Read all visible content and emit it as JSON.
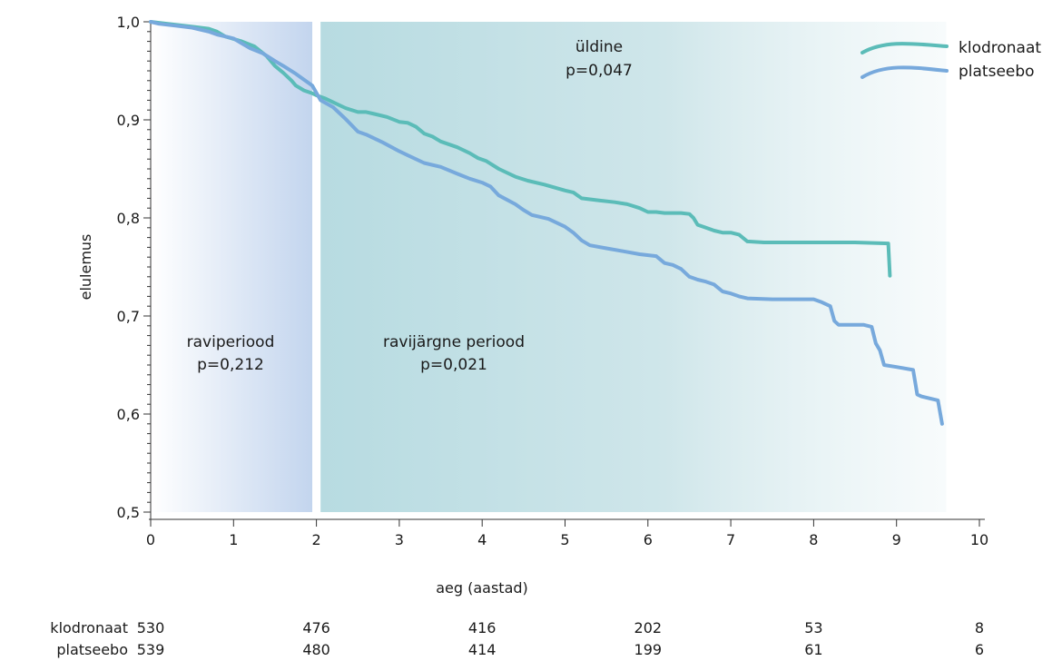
{
  "chart_data": {
    "type": "line",
    "xlabel": "aeg (aastad)",
    "ylabel": "elulemus",
    "xlim": [
      0,
      10
    ],
    "ylim": [
      0.5,
      1.0
    ],
    "x_ticks": [
      "0",
      "1",
      "2",
      "3",
      "4",
      "5",
      "6",
      "7",
      "8",
      "9",
      "10"
    ],
    "y_ticks": [
      {
        "value": 1.0,
        "label": "1,0"
      },
      {
        "value": 0.9,
        "label": "0,9"
      },
      {
        "value": 0.8,
        "label": "0,8"
      },
      {
        "value": 0.7,
        "label": "0,7"
      },
      {
        "value": 0.6,
        "label": "0,6"
      },
      {
        "value": 0.5,
        "label": "0,5"
      }
    ],
    "grid": false,
    "legend_position": "top-right",
    "colors": {
      "klodronaat": "#5bbcb8",
      "platseebo": "#77a9dc",
      "treatment_band": "#c3d5ee",
      "post_band": "#b7dbe1"
    },
    "regions": [
      {
        "x_start": 0,
        "x_end": 1.95,
        "label": "raviperiood",
        "p_label": "p=0,212"
      },
      {
        "x_start": 2.05,
        "x_end": 9.6,
        "label": "ravijärgne periood",
        "p_label": "p=0,021"
      }
    ],
    "overall_annotation": {
      "label": "üldine",
      "p_label": "p=0,047"
    },
    "series": [
      {
        "name": "klodronaat",
        "x": [
          0,
          0.1,
          0.3,
          0.5,
          0.7,
          0.8,
          0.9,
          1.1,
          1.25,
          1.4,
          1.5,
          1.6,
          1.7,
          1.75,
          1.85,
          1.95,
          2.0,
          2.1,
          2.2,
          2.35,
          2.5,
          2.6,
          2.7,
          2.85,
          3.0,
          3.1,
          3.2,
          3.3,
          3.4,
          3.5,
          3.7,
          3.85,
          3.95,
          4.05,
          4.2,
          4.4,
          4.55,
          4.75,
          5.0,
          5.1,
          5.2,
          5.4,
          5.6,
          5.75,
          5.9,
          6.0,
          6.1,
          6.2,
          6.4,
          6.5,
          6.55,
          6.6,
          6.7,
          6.8,
          6.9,
          7.0,
          7.1,
          7.2,
          7.4,
          8.0,
          8.5,
          8.9,
          8.92
        ],
        "values": [
          1.0,
          0.999,
          0.997,
          0.995,
          0.993,
          0.99,
          0.985,
          0.98,
          0.975,
          0.965,
          0.955,
          0.948,
          0.94,
          0.935,
          0.93,
          0.927,
          0.925,
          0.922,
          0.918,
          0.912,
          0.908,
          0.908,
          0.906,
          0.903,
          0.898,
          0.897,
          0.893,
          0.886,
          0.883,
          0.878,
          0.872,
          0.866,
          0.861,
          0.858,
          0.85,
          0.842,
          0.838,
          0.834,
          0.828,
          0.826,
          0.82,
          0.818,
          0.816,
          0.814,
          0.81,
          0.806,
          0.806,
          0.805,
          0.805,
          0.804,
          0.8,
          0.793,
          0.79,
          0.787,
          0.785,
          0.785,
          0.783,
          0.776,
          0.775,
          0.775,
          0.775,
          0.774,
          0.741
        ]
      },
      {
        "name": "platseebo",
        "x": [
          0,
          0.1,
          0.3,
          0.5,
          0.7,
          0.8,
          0.9,
          1.0,
          1.1,
          1.2,
          1.35,
          1.5,
          1.6,
          1.75,
          1.85,
          1.95,
          2.05,
          2.2,
          2.35,
          2.5,
          2.6,
          2.8,
          3.0,
          3.1,
          3.3,
          3.5,
          3.7,
          3.85,
          4.0,
          4.1,
          4.2,
          4.4,
          4.5,
          4.6,
          4.8,
          5.0,
          5.1,
          5.2,
          5.3,
          5.5,
          5.7,
          5.9,
          6.1,
          6.2,
          6.3,
          6.4,
          6.5,
          6.6,
          6.7,
          6.8,
          6.9,
          7.0,
          7.1,
          7.2,
          7.5,
          8.0,
          8.1,
          8.2,
          8.25,
          8.3,
          8.6,
          8.7,
          8.75,
          8.8,
          8.85,
          9.0,
          9.2,
          9.25,
          9.3,
          9.5,
          9.55
        ],
        "values": [
          1.0,
          0.998,
          0.996,
          0.994,
          0.99,
          0.987,
          0.985,
          0.983,
          0.978,
          0.973,
          0.968,
          0.96,
          0.955,
          0.947,
          0.941,
          0.935,
          0.92,
          0.913,
          0.901,
          0.888,
          0.885,
          0.877,
          0.868,
          0.864,
          0.856,
          0.852,
          0.845,
          0.84,
          0.836,
          0.832,
          0.823,
          0.814,
          0.808,
          0.803,
          0.799,
          0.791,
          0.785,
          0.777,
          0.772,
          0.769,
          0.766,
          0.763,
          0.761,
          0.754,
          0.752,
          0.748,
          0.74,
          0.737,
          0.735,
          0.732,
          0.725,
          0.723,
          0.72,
          0.718,
          0.717,
          0.717,
          0.714,
          0.71,
          0.695,
          0.691,
          0.691,
          0.689,
          0.672,
          0.665,
          0.65,
          0.648,
          0.645,
          0.62,
          0.618,
          0.614,
          0.59
        ]
      }
    ]
  },
  "risk_table": {
    "x_positions": [
      0,
      2,
      4,
      6,
      8,
      10
    ],
    "rows": [
      {
        "label": "klodronaat",
        "values": [
          "530",
          "476",
          "416",
          "202",
          "53",
          "8"
        ]
      },
      {
        "label": "platseebo",
        "values": [
          "539",
          "480",
          "414",
          "199",
          "61",
          "6"
        ]
      }
    ]
  }
}
